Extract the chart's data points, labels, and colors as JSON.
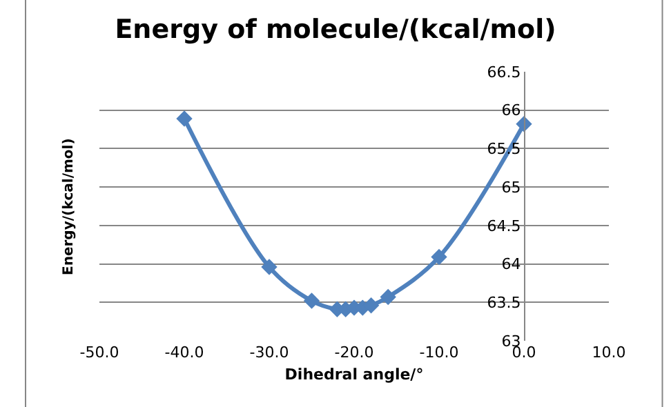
{
  "chart_data": {
    "type": "line",
    "title": "Energy of molecule/(kcal/mol)",
    "xlabel": "Dihedral angle/°",
    "ylabel": "Energy/(kcal/mol)",
    "x": [
      -40,
      -30,
      -25,
      -22,
      -21,
      -20,
      -19,
      -18,
      -16,
      -10,
      0
    ],
    "series": [
      {
        "color": "#4f81bd",
        "values": [
          65.89,
          63.96,
          63.52,
          63.41,
          63.41,
          63.43,
          63.43,
          63.46,
          63.57,
          64.09,
          65.82
        ]
      }
    ],
    "xlim": [
      -50,
      10
    ],
    "xticks": [
      {
        "value": -50,
        "label": "-50.0"
      },
      {
        "value": -40,
        "label": "-40.0"
      },
      {
        "value": -30,
        "label": "-30.0"
      },
      {
        "value": -20,
        "label": "-20.0"
      },
      {
        "value": -10,
        "label": "-10.0"
      },
      {
        "value": 0,
        "label": "0.0"
      },
      {
        "value": 10,
        "label": "10.0"
      }
    ],
    "ylim": [
      63,
      66.5
    ],
    "yticks": [
      63,
      63.5,
      64,
      64.5,
      65,
      65.5,
      66,
      66.5
    ],
    "grid": "y",
    "legend": false,
    "marker": "diamond",
    "line_style": "solid"
  }
}
